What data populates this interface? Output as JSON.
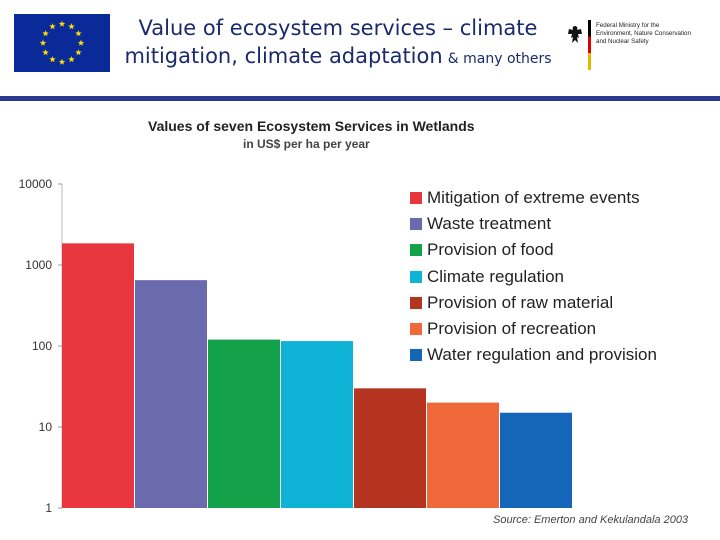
{
  "header": {
    "title_line1": "Value of ecosystem services – climate",
    "title_line2": "mitigation, climate adaptation",
    "title_suffix": "& many others",
    "ministry_lines": [
      "Federal Ministry for the",
      "Environment, Nature Conservation",
      "and Nuclear Safety"
    ]
  },
  "colors": {
    "header_text": "#1a2a6c",
    "rule": "#2b3a8c",
    "eu_blue": "#0b2a9a",
    "eu_star": "#ffdd00"
  },
  "chart_data": {
    "type": "bar",
    "title": "Values of seven Ecosystem Services in Wetlands",
    "subtitle": "in US$ per ha per year",
    "scale": "log",
    "ylim": [
      1,
      10000
    ],
    "yticks": [
      "1",
      "10",
      "100",
      "1000",
      "10000"
    ],
    "categories": [
      "Mitigation of extreme events",
      "Waste treatment",
      "Provision of food",
      "Climate regulation",
      "Provision of raw material",
      "Provision of recreation",
      "Water regulation and provision"
    ],
    "values": [
      1850,
      650,
      120,
      115,
      30,
      20,
      15
    ],
    "colors": [
      "#e8363f",
      "#6a6aad",
      "#13a14a",
      "#0fb3d6",
      "#b5341f",
      "#f0693a",
      "#1565b8"
    ],
    "legend_position": "top-right",
    "source": "Source: Emerton and Kekulandala 2003"
  }
}
